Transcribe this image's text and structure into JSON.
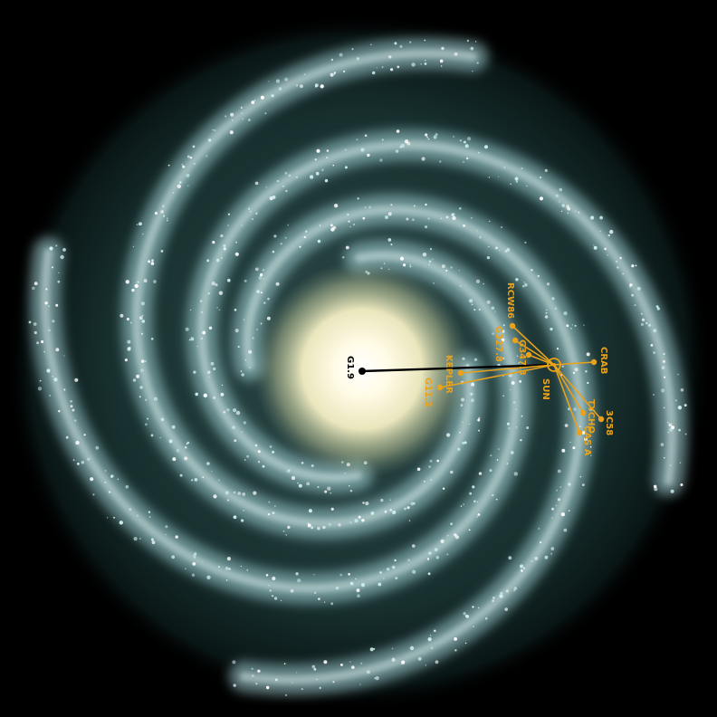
{
  "colors": {
    "background": "#000000",
    "arm": "#a9d8dc",
    "core": "#fff7d2",
    "accent": "#e8a21c",
    "gc_line": "#000000"
  },
  "galaxy": {
    "center_label": "G1.9",
    "sun_label": "SUN"
  },
  "sources": [
    {
      "id": "rcw86",
      "label": "RCW86"
    },
    {
      "id": "g327",
      "label": "G327.8"
    },
    {
      "id": "g347",
      "label": "G347.3"
    },
    {
      "id": "kepler",
      "label": "KEPLER"
    },
    {
      "id": "g11",
      "label": "G11.2"
    },
    {
      "id": "crab",
      "label": "CRAB"
    },
    {
      "id": "3c58",
      "label": "3C58"
    },
    {
      "id": "tycho",
      "label": "TYCHO"
    },
    {
      "id": "casa",
      "label": "CAS A"
    }
  ]
}
